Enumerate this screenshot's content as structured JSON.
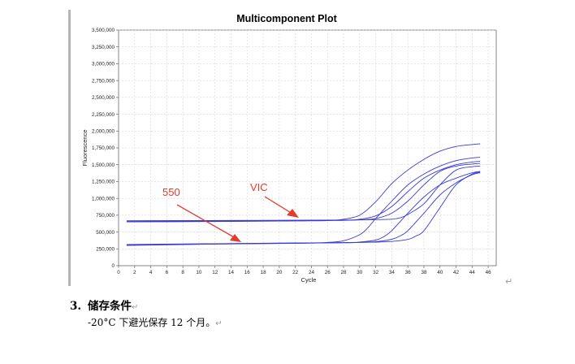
{
  "chart_data": {
    "type": "line",
    "title": "Multicomponent Plot",
    "xlabel": "Cycle",
    "ylabel": "Fluorescence",
    "xlim": [
      0,
      47
    ],
    "ylim": [
      0,
      3500000
    ],
    "x_ticks": [
      0,
      2,
      4,
      6,
      8,
      10,
      12,
      14,
      16,
      18,
      20,
      22,
      24,
      26,
      28,
      30,
      32,
      34,
      36,
      38,
      40,
      42,
      44,
      46
    ],
    "y_ticks": [
      0,
      250000,
      500000,
      750000,
      1000000,
      1250000,
      1500000,
      1750000,
      2000000,
      2250000,
      2500000,
      2750000,
      3000000,
      3250000,
      3500000
    ],
    "y_tick_labels": [
      "0",
      "250,000",
      "500,000",
      "750,000",
      "1,000,000",
      "1,250,000",
      "1,500,000",
      "1,750,000",
      "2,000,000",
      "2,250,000",
      "2,500,000",
      "2,750,000",
      "3,000,000",
      "3,250,000",
      "3,500,000"
    ],
    "grid": true,
    "line_color": "#3a3ad6",
    "series": [
      {
        "x": [
          1,
          10,
          20,
          26,
          28,
          30,
          32,
          34,
          36,
          38,
          40,
          42,
          44,
          45
        ],
        "y": [
          650000,
          655000,
          662000,
          670000,
          690000,
          750000,
          950000,
          1220000,
          1420000,
          1580000,
          1700000,
          1770000,
          1800000,
          1810000
        ]
      },
      {
        "x": [
          1,
          10,
          20,
          28,
          30,
          32,
          34,
          36,
          38,
          40,
          42,
          44,
          45
        ],
        "y": [
          660000,
          662000,
          668000,
          672000,
          690000,
          740000,
          880000,
          1100000,
          1300000,
          1420000,
          1500000,
          1540000,
          1550000
        ]
      },
      {
        "x": [
          1,
          10,
          20,
          28,
          30,
          32,
          34,
          36,
          38,
          40,
          42,
          44,
          45
        ],
        "y": [
          665000,
          668000,
          672000,
          676000,
          682000,
          700000,
          780000,
          960000,
          1200000,
          1400000,
          1480000,
          1510000,
          1520000
        ]
      },
      {
        "x": [
          1,
          10,
          20,
          28,
          32,
          34,
          35,
          36,
          38,
          40,
          42,
          44,
          45
        ],
        "y": [
          668000,
          670000,
          674000,
          678000,
          684000,
          690000,
          710000,
          760000,
          920000,
          1200000,
          1420000,
          1470000,
          1480000
        ]
      },
      {
        "x": [
          1,
          10,
          20,
          24,
          26,
          28,
          30,
          31,
          32,
          34,
          36,
          38,
          40,
          42,
          44,
          45
        ],
        "y": [
          300000,
          318000,
          330000,
          336000,
          345000,
          370000,
          460000,
          560000,
          700000,
          960000,
          1200000,
          1360000,
          1480000,
          1560000,
          1600000,
          1610000
        ]
      },
      {
        "x": [
          1,
          10,
          20,
          28,
          30,
          32,
          33,
          34,
          36,
          38,
          40,
          42,
          44,
          45
        ],
        "y": [
          305000,
          320000,
          332000,
          340000,
          350000,
          380000,
          430000,
          520000,
          780000,
          1020000,
          1200000,
          1300000,
          1380000,
          1400000
        ]
      },
      {
        "x": [
          1,
          10,
          20,
          28,
          30,
          32,
          34,
          35,
          36,
          38,
          40,
          42,
          44,
          45
        ],
        "y": [
          310000,
          322000,
          334000,
          342000,
          346000,
          356000,
          392000,
          440000,
          520000,
          780000,
          1050000,
          1230000,
          1350000,
          1380000
        ]
      },
      {
        "x": [
          1,
          10,
          20,
          28,
          32,
          34,
          36,
          37,
          38,
          40,
          42,
          44,
          45
        ],
        "y": [
          315000,
          325000,
          335000,
          343000,
          350000,
          360000,
          390000,
          440000,
          520000,
          860000,
          1200000,
          1360000,
          1390000
        ]
      }
    ],
    "annotations": [
      {
        "text": "550",
        "color": "#e53b2b"
      },
      {
        "text": "VIC",
        "color": "#e53b2b"
      }
    ]
  },
  "document": {
    "section_number": "3.",
    "section_title": "储存条件",
    "body_text": "-20°C 下避光保存 12 个月。"
  },
  "return_mark": "↵"
}
